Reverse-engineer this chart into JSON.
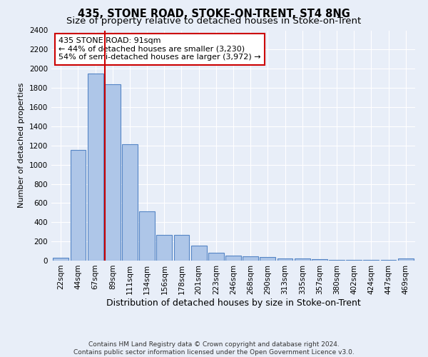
{
  "title": "435, STONE ROAD, STOKE-ON-TRENT, ST4 8NG",
  "subtitle": "Size of property relative to detached houses in Stoke-on-Trent",
  "xlabel": "Distribution of detached houses by size in Stoke-on-Trent",
  "ylabel": "Number of detached properties",
  "footer_line1": "Contains HM Land Registry data © Crown copyright and database right 2024.",
  "footer_line2": "Contains public sector information licensed under the Open Government Licence v3.0.",
  "annotation_title": "435 STONE ROAD: 91sqm",
  "annotation_line1": "← 44% of detached houses are smaller (3,230)",
  "annotation_line2": "54% of semi-detached houses are larger (3,972) →",
  "bar_categories": [
    "22sqm",
    "44sqm",
    "67sqm",
    "89sqm",
    "111sqm",
    "134sqm",
    "156sqm",
    "178sqm",
    "201sqm",
    "223sqm",
    "246sqm",
    "268sqm",
    "290sqm",
    "313sqm",
    "335sqm",
    "357sqm",
    "380sqm",
    "402sqm",
    "424sqm",
    "447sqm",
    "469sqm"
  ],
  "bar_values": [
    30,
    1150,
    1950,
    1840,
    1210,
    510,
    265,
    265,
    155,
    80,
    50,
    45,
    40,
    25,
    20,
    15,
    5,
    5,
    5,
    5,
    20
  ],
  "bar_color": "#aec6e8",
  "bar_edge_color": "#5585c5",
  "vline_x_index": 3,
  "vline_color": "#cc0000",
  "ylim": [
    0,
    2400
  ],
  "yticks": [
    0,
    200,
    400,
    600,
    800,
    1000,
    1200,
    1400,
    1600,
    1800,
    2000,
    2200,
    2400
  ],
  "bg_color": "#e8eef8",
  "plot_bg_color": "#e8eef8",
  "annotation_box_facecolor": "#ffffff",
  "annotation_box_edgecolor": "#cc0000",
  "title_fontsize": 10.5,
  "subtitle_fontsize": 9.5,
  "ylabel_fontsize": 8,
  "xlabel_fontsize": 9,
  "tick_fontsize": 7.5,
  "footer_fontsize": 6.5,
  "annotation_fontsize": 8
}
